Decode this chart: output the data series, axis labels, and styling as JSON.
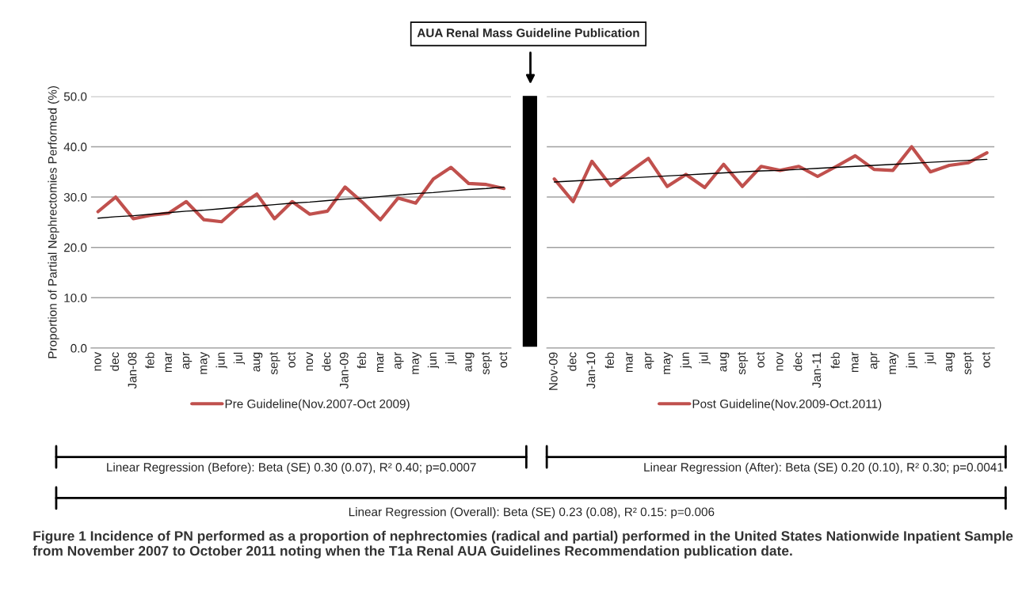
{
  "chart_data": [
    {
      "type": "line",
      "ylabel": "Proportion of Partial Nephrectomies Performed (%)",
      "categories": [
        "nov",
        "dec",
        "Jan-08",
        "feb",
        "mar",
        "apr",
        "may",
        "jun",
        "jul",
        "aug",
        "sept",
        "oct",
        "nov",
        "dec",
        "Jan-09",
        "feb",
        "mar",
        "apr",
        "may",
        "jun",
        "jul",
        "aug",
        "sept",
        "oct"
      ],
      "series": [
        {
          "name": "Pre Guideline(Nov.2007-Oct 2009)",
          "color": "#c0504d",
          "values": [
            27.1,
            30.0,
            25.7,
            26.4,
            26.8,
            29.1,
            25.5,
            25.1,
            28.2,
            30.6,
            25.7,
            29.1,
            26.6,
            27.2,
            32.0,
            28.9,
            25.5,
            29.8,
            28.8,
            33.6,
            35.9,
            32.7,
            32.5,
            31.7
          ]
        },
        {
          "color": "#000000",
          "values": [
            25.8,
            26.1,
            26.3,
            26.6,
            26.9,
            27.2,
            27.4,
            27.7,
            28.0,
            28.2,
            28.5,
            28.8,
            29.0,
            29.3,
            29.6,
            29.8,
            30.1,
            30.4,
            30.7,
            30.9,
            31.2,
            31.5,
            31.7,
            32.0
          ]
        }
      ],
      "ylim": [
        0,
        50
      ],
      "yticks": [
        {
          "value": 0,
          "label": "0.0"
        },
        {
          "value": 10,
          "label": "10.0"
        },
        {
          "value": 20,
          "label": "20.0"
        },
        {
          "value": 30,
          "label": "30.0"
        },
        {
          "value": 40,
          "label": "40.0"
        },
        {
          "value": 50,
          "label": "50.0"
        }
      ],
      "grid": "y",
      "legend": "bottom",
      "annotations": [
        "AUA Renal Mass Guideline Publication",
        "Linear Regression (Before): Beta (SE) 0.30 (0.07), R² 0.40; p=0.0007",
        "Linear Regression (Overall): Beta (SE) 0.23 (0.08), R² 0.15: p=0.006",
        "Figure 1 Incidence of PN performed as a proportion of nephrectomies (radical and partial) performed in the United States Nationwide Inpatient Sample from November 2007 to October 2011 noting when the T1a Renal AUA Guidelines Recommendation publication date."
      ]
    },
    {
      "type": "line",
      "categories": [
        "Nov-09",
        "dec",
        "Jan-10",
        "feb",
        "mar",
        "apr",
        "may",
        "jun",
        "jul",
        "aug",
        "sept",
        "oct",
        "nov",
        "dec",
        "Jan-11",
        "feb",
        "mar",
        "apr",
        "may",
        "jun",
        "jul",
        "aug",
        "sept",
        "oct"
      ],
      "series": [
        {
          "name": "Post Guideline(Nov.2009-Oct.2011)",
          "color": "#c0504d",
          "values": [
            33.6,
            29.1,
            37.1,
            32.3,
            35.0,
            37.7,
            32.1,
            34.5,
            31.9,
            36.5,
            32.1,
            36.1,
            35.3,
            36.1,
            34.1,
            36.1,
            38.2,
            35.5,
            35.3,
            40.0,
            35.0,
            36.3,
            36.8,
            38.8
          ]
        },
        {
          "color": "#000000",
          "values": [
            33.0,
            33.2,
            33.4,
            33.6,
            33.8,
            34.0,
            34.2,
            34.4,
            34.6,
            34.8,
            35.0,
            35.2,
            35.3,
            35.5,
            35.7,
            35.9,
            36.1,
            36.3,
            36.5,
            36.7,
            36.9,
            37.1,
            37.3,
            37.5
          ]
        }
      ],
      "ylim": [
        0,
        50
      ],
      "yticks": [
        0,
        10,
        20,
        30,
        40,
        50
      ],
      "grid": "y",
      "legend": "bottom",
      "tick_labels": "x",
      "annotations": [
        "Linear Regression (After): Beta (SE) 0.20 (0.10), R² 0.30; p=0.0041"
      ]
    }
  ]
}
